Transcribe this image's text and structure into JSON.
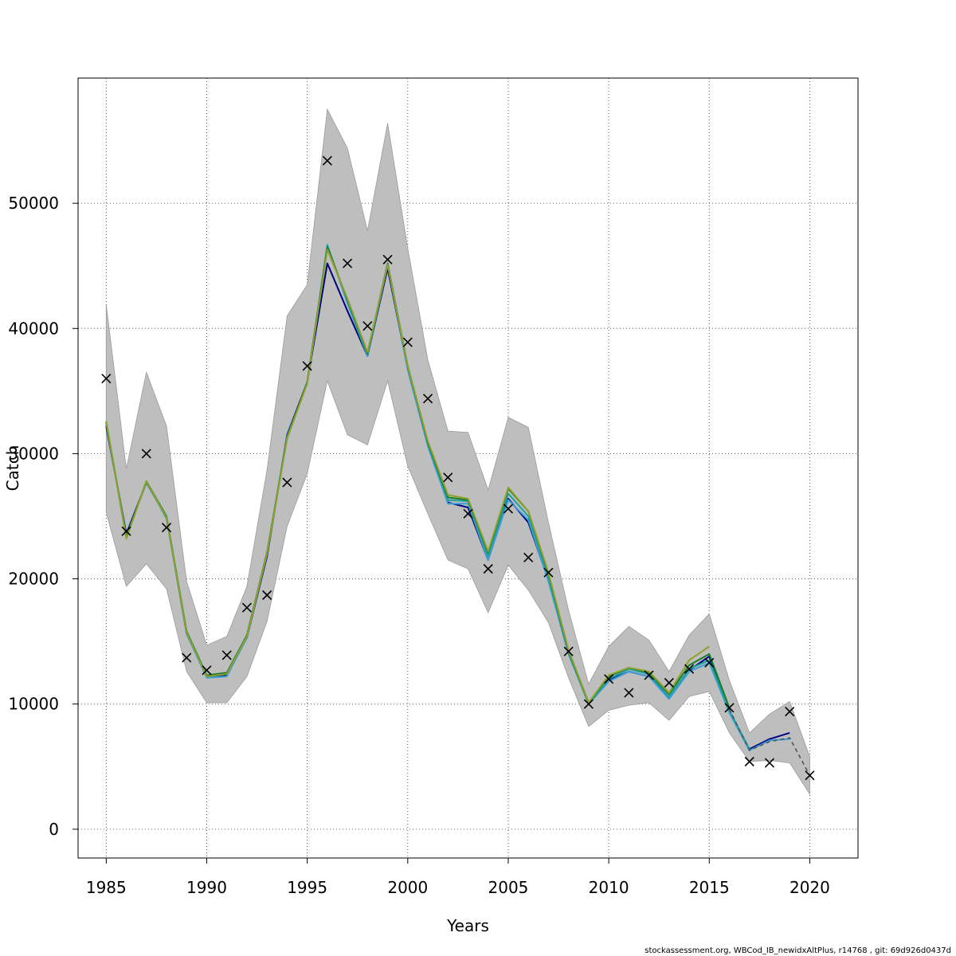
{
  "chart_data": {
    "type": "line",
    "xlabel": "Years",
    "ylabel": "Catch",
    "xlim": [
      1983.6,
      2022.4
    ],
    "ylim": [
      -2300,
      60000
    ],
    "x_ticks": [
      1985,
      1990,
      1995,
      2000,
      2005,
      2010,
      2015,
      2020
    ],
    "y_ticks": [
      0,
      10000,
      20000,
      30000,
      40000,
      50000
    ],
    "grid": true,
    "x": [
      1985,
      1986,
      1987,
      1988,
      1989,
      1990,
      1991,
      1992,
      1993,
      1994,
      1995,
      1996,
      1997,
      1998,
      1999,
      2000,
      2001,
      2002,
      2003,
      2004,
      2005,
      2006,
      2007,
      2008,
      2009,
      2010,
      2011,
      2012,
      2013,
      2014,
      2015,
      2016,
      2017,
      2018,
      2019,
      2020
    ],
    "confidence_band": {
      "color": "#bebebe",
      "lower": [
        25300,
        19400,
        21200,
        19200,
        12600,
        10100,
        10100,
        12200,
        16600,
        24200,
        28400,
        35800,
        31500,
        30700,
        35800,
        29000,
        25200,
        21500,
        20800,
        17300,
        21100,
        19100,
        16500,
        12100,
        8200,
        9500,
        9900,
        10100,
        8700,
        10600,
        11000,
        7700,
        5400,
        5500,
        5300,
        2800
      ],
      "upper": [
        41900,
        28800,
        36500,
        32200,
        19800,
        14700,
        15400,
        19400,
        28700,
        41000,
        43500,
        57500,
        54400,
        47800,
        56400,
        46400,
        37500,
        31800,
        31700,
        27100,
        32900,
        32100,
        24500,
        17500,
        11600,
        14600,
        16200,
        15100,
        12600,
        15500,
        17200,
        11900,
        7700,
        9200,
        10200,
        5800
      ]
    },
    "series": [
      {
        "color": "#000080",
        "values": [
          32200,
          23600,
          27700,
          24900,
          15600,
          12200,
          12300,
          15300,
          21800,
          31500,
          35700,
          45200,
          41400,
          37800,
          44800,
          36800,
          30800,
          26100,
          25700,
          21500,
          26400,
          24500,
          19900,
          14000,
          10100,
          11900,
          12600,
          12200,
          10500,
          12700,
          13800,
          9400,
          6400,
          7200,
          7700,
          null
        ]
      },
      {
        "color": "#3a9fd9",
        "values": [
          32400,
          23300,
          27800,
          24800,
          15600,
          12100,
          12200,
          15300,
          22100,
          31400,
          35600,
          46700,
          42000,
          37800,
          45100,
          36700,
          30600,
          26000,
          26000,
          21500,
          26300,
          24700,
          19800,
          14000,
          10000,
          11800,
          12600,
          12200,
          10400,
          12600,
          13300,
          9300,
          6300,
          7100,
          7200,
          null
        ]
      },
      {
        "color": "#1aa39a",
        "values": [
          32500,
          23400,
          27700,
          24900,
          15700,
          12200,
          12400,
          15400,
          22000,
          31300,
          35600,
          46600,
          42200,
          37900,
          45100,
          36900,
          30800,
          26300,
          26200,
          21800,
          26800,
          25000,
          20200,
          14100,
          10000,
          12000,
          12800,
          12400,
          10600,
          12800,
          13500,
          9500,
          6400,
          null,
          null,
          null
        ]
      },
      {
        "color": "#1e7a2e",
        "values": [
          32500,
          23300,
          27800,
          25000,
          15800,
          12300,
          12500,
          15500,
          22100,
          31300,
          35700,
          46500,
          42300,
          38000,
          45200,
          37000,
          30900,
          26500,
          26300,
          22100,
          27200,
          25400,
          20400,
          14200,
          10100,
          12200,
          12900,
          12500,
          10800,
          13100,
          14000,
          9700,
          null,
          null,
          null,
          null
        ]
      },
      {
        "color": "#8fa02a",
        "values": [
          32600,
          23200,
          27800,
          24900,
          15700,
          12200,
          12400,
          15400,
          22000,
          31200,
          35600,
          46300,
          42400,
          38100,
          45100,
          37000,
          31000,
          26700,
          26400,
          22200,
          27300,
          25400,
          20500,
          14300,
          10100,
          12300,
          12900,
          12600,
          10900,
          13500,
          14600,
          null,
          null,
          null,
          null,
          null
        ]
      },
      {
        "color": "#555555",
        "dashed": true,
        "values": [
          null,
          null,
          null,
          null,
          null,
          null,
          null,
          null,
          null,
          null,
          null,
          null,
          null,
          null,
          null,
          null,
          null,
          null,
          null,
          null,
          null,
          null,
          null,
          null,
          null,
          null,
          null,
          null,
          null,
          null,
          null,
          9600,
          6300,
          7000,
          7300,
          4300
        ]
      }
    ],
    "observed": {
      "marker": "x",
      "values": [
        36000,
        23800,
        30000,
        24100,
        13700,
        12700,
        13900,
        17700,
        18700,
        27700,
        37000,
        53400,
        45200,
        40200,
        45500,
        38900,
        34400,
        28100,
        25200,
        20800,
        25600,
        21700,
        20500,
        14200,
        10000,
        12000,
        10900,
        12300,
        11700,
        12800,
        13300,
        9700,
        5400,
        5300,
        9400,
        4300
      ]
    }
  },
  "footer": "stockassessment.org, WBCod_IB_newidxAltPlus, r14768 , git: 69d926d0437d"
}
